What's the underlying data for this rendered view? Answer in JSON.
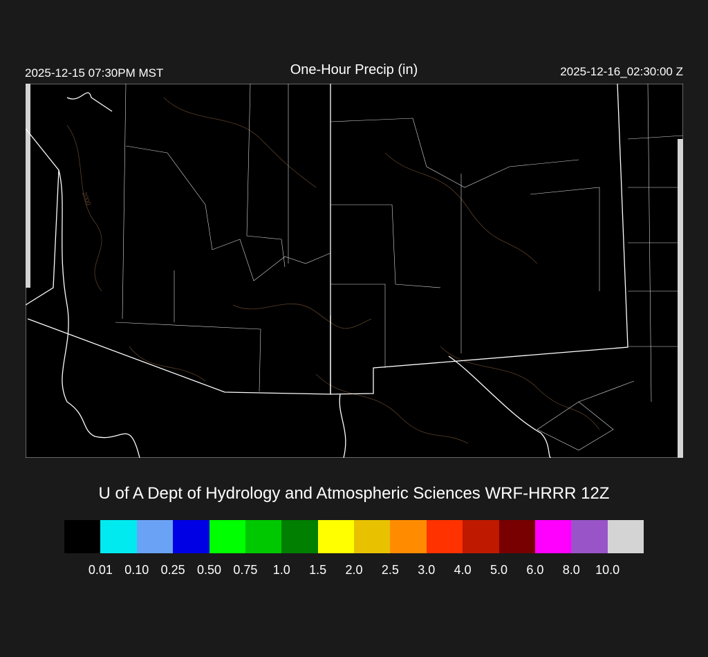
{
  "header": {
    "local_time": "2025-12-15 07:30PM MST",
    "title": "One-Hour Precip (in)",
    "valid_time": "2025-12-16_02:30:00 Z"
  },
  "map": {
    "contour_label": "2000",
    "background": "#000000",
    "boundary_color": "#ffffff",
    "contour_color": "#5a3f28"
  },
  "credit": "U of A Dept of Hydrology and Atmospheric Sciences WRF-HRRR 12Z",
  "legend": {
    "colors": [
      "#000000",
      "#00eaf0",
      "#6aa2f6",
      "#0000e4",
      "#00ff00",
      "#00c800",
      "#007f00",
      "#ffff00",
      "#e8c200",
      "#ff8c00",
      "#ff3200",
      "#bf1900",
      "#780000",
      "#ff00ff",
      "#9955c8",
      "#d4d4d4"
    ],
    "labels": [
      "0.01",
      "0.10",
      "0.25",
      "0.50",
      "0.75",
      "1.0",
      "1.5",
      "2.0",
      "2.5",
      "3.0",
      "4.0",
      "5.0",
      "6.0",
      "8.0",
      "10.0"
    ]
  }
}
